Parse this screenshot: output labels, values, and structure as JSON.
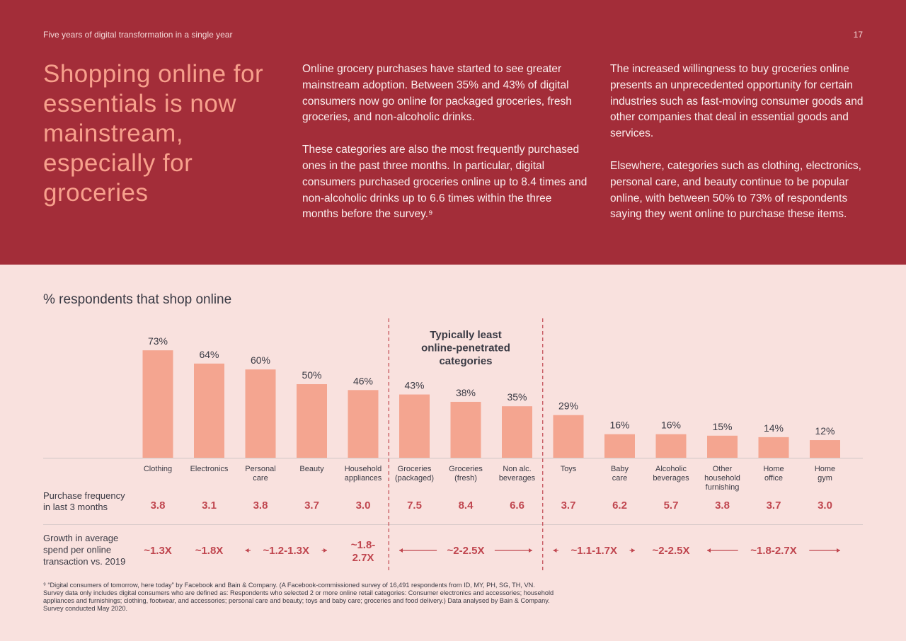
{
  "header": {
    "running_head": "Five years of digital transformation in a single year",
    "page_number": "17",
    "headline": "Shopping online for essentials is now mainstream, especially for groceries"
  },
  "body": {
    "col1_p1": "Online grocery purchases have started to see greater mainstream adoption. Between 35% and 43% of digital consumers now go online for packaged groceries, fresh groceries, and non-alcoholic drinks.",
    "col1_p2": "These categories are also the most frequently purchased ones in the past three months. In particular, digital consumers purchased groceries online up to 8.4 times and non-alcoholic drinks up to 6.6 times within the three months before the survey.⁹",
    "col2_p1": "The increased willingness to buy groceries online presents an unprecedented opportunity for certain industries such as fast-moving consumer goods and other companies that deal in essential goods and services.",
    "col2_p2": "Elsewhere, categories such as clothing, electronics, personal care, and beauty continue to be popular online, with between 50% to 73% of respondents saying they went online to purchase these items."
  },
  "chart_data": {
    "type": "bar",
    "title": "% respondents that shop online",
    "categories": [
      [
        "Clothing"
      ],
      [
        "Electronics"
      ],
      [
        "Personal",
        "care"
      ],
      [
        "Beauty"
      ],
      [
        "Household",
        "appliances"
      ],
      [
        "Groceries",
        "(packaged)"
      ],
      [
        "Groceries",
        "(fresh)"
      ],
      [
        "Non alc.",
        "beverages"
      ],
      [
        "Toys"
      ],
      [
        "Baby",
        "care"
      ],
      [
        "Alcoholic",
        "beverages"
      ],
      [
        "Other",
        "household",
        "furnishing"
      ],
      [
        "Home",
        "office"
      ],
      [
        "Home",
        "gym"
      ]
    ],
    "values": [
      73,
      64,
      60,
      50,
      46,
      43,
      38,
      35,
      29,
      16,
      16,
      15,
      14,
      12
    ],
    "value_labels": [
      "73%",
      "64%",
      "60%",
      "50%",
      "46%",
      "43%",
      "38%",
      "35%",
      "29%",
      "16%",
      "16%",
      "15%",
      "14%",
      "12%"
    ],
    "bar_color": "#f4a590",
    "label_color": "#c0464f",
    "highlight": {
      "label": [
        "Typically least",
        "online-penetrated",
        "categories"
      ],
      "from_index": 5,
      "to_index": 7
    },
    "rows": [
      {
        "label": [
          "Purchase frequency",
          "in last 3 months"
        ],
        "values": [
          "3.8",
          "3.1",
          "3.8",
          "3.7",
          "3.0",
          "7.5",
          "8.4",
          "6.6",
          "3.7",
          "6.2",
          "5.7",
          "3.8",
          "3.7",
          "3.0"
        ]
      },
      {
        "label": [
          "Growth in average",
          "spend per online",
          "transaction vs. 2019"
        ],
        "groups": [
          {
            "from": 0,
            "to": 0,
            "text": [
              "~1.3X"
            ],
            "arrows": false
          },
          {
            "from": 1,
            "to": 1,
            "text": [
              "~1.8X"
            ],
            "arrows": false
          },
          {
            "from": 2,
            "to": 3,
            "text": [
              "~1.2-1.3X"
            ],
            "arrows": true
          },
          {
            "from": 4,
            "to": 4,
            "text": [
              "~1.8-",
              "2.7X"
            ],
            "arrows": false
          },
          {
            "from": 5,
            "to": 7,
            "text": [
              "~2-2.5X"
            ],
            "arrows": true
          },
          {
            "from": 8,
            "to": 9,
            "text": [
              "~1.1-1.7X"
            ],
            "arrows": true
          },
          {
            "from": 10,
            "to": 10,
            "text": [
              "~2-2.5X"
            ],
            "arrows": false
          },
          {
            "from": 11,
            "to": 13,
            "text": [
              "~1.8-2.7X"
            ],
            "arrows": true
          }
        ]
      }
    ]
  },
  "footnote": {
    "line1": "⁹ “Digital consumers of tomorrow, here today” by Facebook and Bain & Company. (A Facebook-commissioned survey of 16,491 respondents from ID, MY, PH, SG, TH, VN.",
    "line2": "Survey data only includes digital consumers who are defined as: Respondents who selected 2 or more online retail categories: Consumer electronics and accessories; household",
    "line3": "appliances and furnishings; clothing, footwear, and accessories; personal care and beauty; toys and baby care; groceries and food delivery.) Data analysed by Bain & Company.",
    "line4": "Survey conducted May 2020."
  }
}
